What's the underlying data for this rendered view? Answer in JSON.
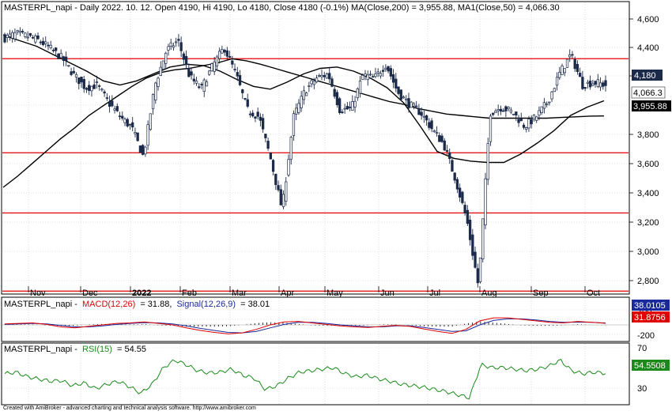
{
  "price_header": {
    "text": "MASTERPL_napi - Daily 2022. 10. 12. Open 4190, Hi 4190, Lo 4180, Close 4180 (-0.1%) MA(Close,200) = 3,955.88, MA1(Close,50) = 4,066.30"
  },
  "price_badges": {
    "close": "4,180",
    "ma50": "4,066.3",
    "ma200": "3,955.88"
  },
  "macd_header": {
    "symbol": "MASTERPL_napi -",
    "macd_label": "MACD(12,26)",
    "macd_value": "= 31.88,",
    "signal_label": "Signal(12,26,9)",
    "signal_value": "= 38.01"
  },
  "macd_badges": {
    "signal": "38.0105",
    "macd": "31.8756"
  },
  "rsi_header": {
    "symbol": "MASTERPL_napi -",
    "rsi_label": "RSI(15)",
    "rsi_value": "= 54.55"
  },
  "rsi_badges": {
    "rsi": "54.5508"
  },
  "footer": {
    "text": "Created with AmiBroker - advanced charting and technical analysis software. http://www.amibroker.com"
  },
  "colors": {
    "candle": "#1c2a4a",
    "ma": "#000000",
    "support_lines": "#e00000",
    "macd_line": "#e00000",
    "signal_line": "#1a2a9c",
    "rsi_line": "#1a8a1a",
    "grid": "#c8c8c8"
  },
  "chart_data": [
    {
      "type": "candlestick",
      "title": "MASTERPL_napi - Daily",
      "x_tick_labels": [
        "Nov",
        "Dec",
        "2022",
        "Feb",
        "Mar",
        "Apr",
        "May",
        "Jun",
        "Jul",
        "Aug",
        "Sep",
        "Oct"
      ],
      "y_tick_labels": [
        "4,600",
        "4,400",
        "4,200",
        "4,000",
        "3,800",
        "3,600",
        "3,400",
        "3,200",
        "3,000",
        "2,800"
      ],
      "ylim": [
        2680,
        4680
      ],
      "grid": true,
      "horizontal_lines": [
        4370,
        3690,
        3255,
        2690
      ],
      "series": [
        {
          "name": "MASTERPL_napi close (approx. weekly)",
          "values": [
            4520,
            4550,
            4530,
            4500,
            4440,
            4370,
            4250,
            4160,
            4180,
            4050,
            3950,
            3870,
            3660,
            4180,
            4430,
            4500,
            4240,
            4150,
            4320,
            4450,
            4260,
            4000,
            3950,
            3650,
            3280,
            3950,
            4140,
            4230,
            4260,
            4000,
            4010,
            4250,
            4230,
            4330,
            4130,
            4040,
            3980,
            3860,
            3750,
            3500,
            3200,
            2720,
            3980,
            4020,
            3980,
            3880,
            3950,
            4060,
            4260,
            4400,
            4180,
            4200,
            4180
          ]
        },
        {
          "name": "MA(Close,200)",
          "values": [
            3440,
            3520,
            3610,
            3700,
            3790,
            3870,
            3960,
            4030,
            4100,
            4170,
            4230,
            4270,
            4290,
            4300,
            4320,
            4340,
            4370,
            4355,
            4330,
            4300,
            4270,
            4240,
            4210,
            4180,
            4150,
            4120,
            4090,
            4060,
            4040,
            4010,
            3990,
            3970,
            3960,
            3950,
            3940,
            3940,
            3940,
            3940,
            3940,
            3945,
            3950,
            3955,
            3956
          ]
        },
        {
          "name": "MA1(Close,50)",
          "values": [
            4540,
            4500,
            4460,
            4400,
            4340,
            4280,
            4210,
            4180,
            4210,
            4260,
            4310,
            4330,
            4320,
            4280,
            4220,
            4170,
            4150,
            4200,
            4260,
            4300,
            4310,
            4280,
            4230,
            4160,
            4050,
            3880,
            3700,
            3650,
            3630,
            3620,
            3620,
            3680,
            3760,
            3850,
            3960,
            4020,
            4066
          ]
        }
      ]
    },
    {
      "type": "line",
      "title": "MACD(12,26), Signal(12,26,9)",
      "y_tick_labels": [
        "200",
        "0",
        "-200"
      ],
      "ylim": [
        -300,
        300
      ],
      "grid": true,
      "series": [
        {
          "name": "MACD(12,26)",
          "values": [
            20,
            30,
            40,
            10,
            -40,
            -60,
            -30,
            0,
            30,
            40,
            60,
            30,
            0,
            -60,
            -110,
            -150,
            -180,
            -160,
            -90,
            0,
            60,
            70,
            40,
            10,
            -20,
            -40,
            -50,
            -30,
            -10,
            -30,
            -80,
            -130,
            -170,
            -90,
            80,
            140,
            140,
            110,
            80,
            50,
            40,
            70,
            50,
            32
          ]
        },
        {
          "name": "Signal(12,26,9)",
          "values": [
            10,
            20,
            30,
            20,
            -10,
            -40,
            -40,
            -20,
            10,
            30,
            45,
            40,
            20,
            -20,
            -70,
            -110,
            -150,
            -160,
            -130,
            -60,
            10,
            50,
            50,
            30,
            0,
            -20,
            -40,
            -40,
            -20,
            -20,
            -50,
            -90,
            -130,
            -120,
            0,
            90,
            120,
            120,
            100,
            70,
            50,
            55,
            50,
            38
          ]
        }
      ]
    },
    {
      "type": "line",
      "title": "RSI(15)",
      "y_tick_labels": [
        "70",
        "30"
      ],
      "ylim": [
        15,
        82
      ],
      "grid": true,
      "series": [
        {
          "name": "RSI(15)",
          "values": [
            54,
            56,
            50,
            47,
            44,
            45,
            38,
            42,
            34,
            40,
            44,
            37,
            28,
            40,
            62,
            72,
            66,
            58,
            55,
            56,
            60,
            52,
            48,
            33,
            38,
            48,
            56,
            58,
            60,
            62,
            54,
            50,
            52,
            47,
            44,
            40,
            38,
            36,
            33,
            30,
            26,
            22,
            66,
            62,
            62,
            60,
            58,
            60,
            64,
            72,
            58,
            54,
            56,
            54.55
          ]
        }
      ]
    }
  ]
}
